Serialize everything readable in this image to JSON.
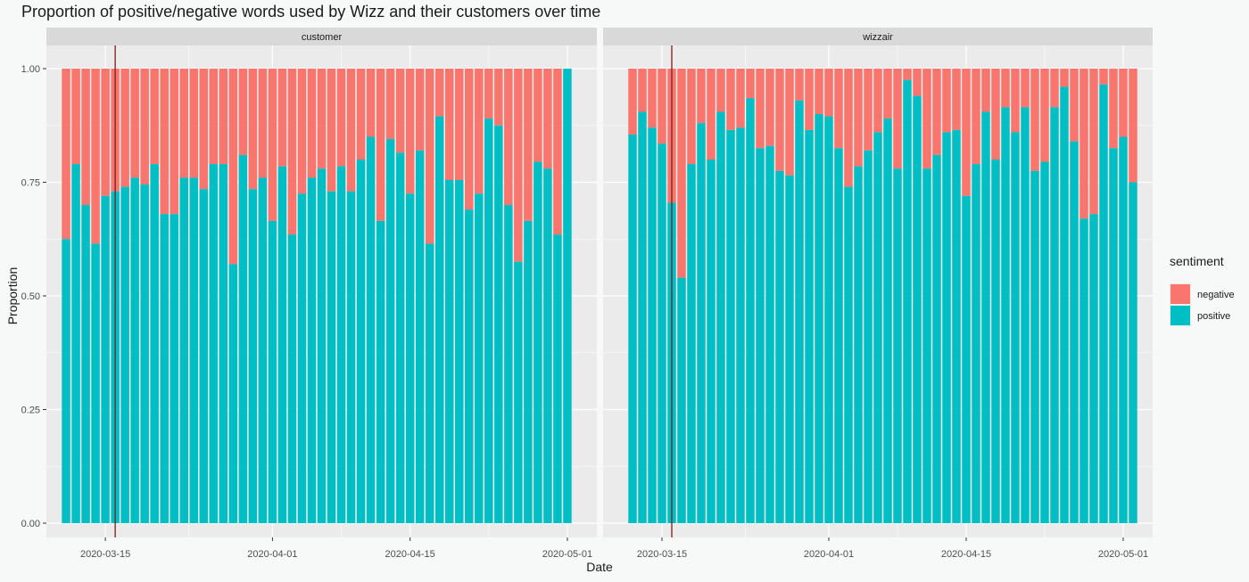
{
  "chart_data": {
    "type": "bar",
    "stacked": true,
    "title": "Proportion of positive/negative words used by Wizz and their customers over time",
    "xlabel": "Date",
    "ylabel": "Proportion",
    "ylim": [
      0,
      1
    ],
    "y_ticks": [
      "0.00",
      "0.25",
      "0.50",
      "0.75",
      "1.00"
    ],
    "x_tick_dates": [
      "2020-03-15",
      "2020-04-01",
      "2020-04-15",
      "2020-05-01"
    ],
    "x_range": [
      "2020-03-09",
      "2020-05-04"
    ],
    "vline_date": "2020-03-16",
    "vline_color": "#7a1c1c",
    "grid": true,
    "legend": {
      "title": "sentiment",
      "placement": "right",
      "entries": [
        {
          "label": "negative",
          "color": "#F8766D"
        },
        {
          "label": "positive",
          "color": "#00BFC4"
        }
      ]
    },
    "panels": [
      {
        "name": "customer",
        "start_date": "2020-03-11",
        "positive": [
          0.625,
          0.79,
          0.7,
          0.615,
          0.72,
          0.73,
          0.74,
          0.76,
          0.745,
          0.79,
          0.68,
          0.68,
          0.76,
          0.76,
          0.735,
          0.79,
          0.79,
          0.57,
          0.81,
          0.735,
          0.76,
          0.665,
          0.785,
          0.635,
          0.725,
          0.76,
          0.78,
          0.73,
          0.785,
          0.73,
          0.8,
          0.85,
          0.665,
          0.845,
          0.815,
          0.725,
          0.82,
          0.615,
          0.895,
          0.755,
          0.755,
          0.69,
          0.725,
          0.89,
          0.875,
          0.7,
          0.575,
          0.665,
          0.795,
          0.78,
          0.635,
          1.0
        ]
      },
      {
        "name": "wizzair",
        "start_date": "2020-03-12",
        "positive": [
          0.855,
          0.905,
          0.87,
          0.835,
          0.705,
          0.54,
          0.79,
          0.88,
          0.8,
          0.905,
          0.865,
          0.87,
          0.935,
          0.825,
          0.83,
          0.775,
          0.765,
          0.93,
          0.865,
          0.9,
          0.895,
          0.825,
          0.74,
          0.785,
          0.82,
          0.86,
          0.89,
          0.78,
          0.975,
          0.94,
          0.78,
          0.81,
          0.86,
          0.865,
          0.72,
          0.79,
          0.905,
          0.8,
          0.915,
          0.86,
          0.915,
          0.775,
          0.795,
          0.915,
          0.96,
          0.84,
          0.67,
          0.68,
          0.965,
          0.825,
          0.85,
          0.75
        ]
      }
    ]
  }
}
